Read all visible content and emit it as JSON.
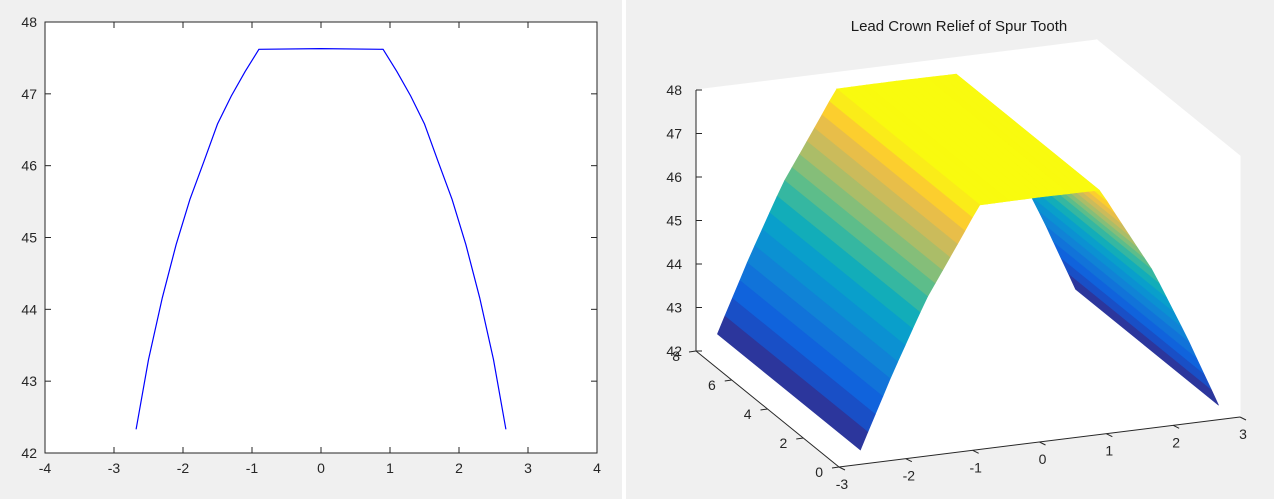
{
  "chart_data": [
    {
      "type": "line",
      "title": "",
      "xlabel": "",
      "ylabel": "",
      "xlim": [
        -4,
        4
      ],
      "ylim": [
        42,
        48
      ],
      "xticks": [
        "-4",
        "-3",
        "-2",
        "-1",
        "0",
        "1",
        "2",
        "3",
        "4"
      ],
      "yticks": [
        "42",
        "43",
        "44",
        "45",
        "46",
        "47",
        "48"
      ],
      "grid": false,
      "series": [
        {
          "color": "#0000ff",
          "x": [
            -2.68,
            -2.5,
            -2.3,
            -2.1,
            -1.9,
            -1.7,
            -1.5,
            -1.3,
            -1.1,
            -0.9,
            0.0,
            0.9,
            1.1,
            1.3,
            1.5,
            1.7,
            1.9,
            2.1,
            2.3,
            2.5,
            2.68
          ],
          "y": [
            42.33,
            43.3,
            44.16,
            44.9,
            45.53,
            46.05,
            46.58,
            46.97,
            47.31,
            47.62,
            47.63,
            47.62,
            47.31,
            46.97,
            46.58,
            46.05,
            45.53,
            44.9,
            44.16,
            43.3,
            42.33
          ]
        }
      ]
    },
    {
      "type": "surface",
      "title": "Lead Crown Relief of Spur Tooth",
      "xlabel": "",
      "ylabel": "",
      "zlabel": "",
      "xlim": [
        -3,
        3
      ],
      "ylim": [
        0,
        8
      ],
      "zlim": [
        42,
        48
      ],
      "xticks": [
        "-3",
        "-2",
        "-1",
        "0",
        "1",
        "2",
        "3"
      ],
      "yticks": [
        "0",
        "2",
        "4",
        "6",
        "8"
      ],
      "zticks": [
        "42",
        "43",
        "44",
        "45",
        "46",
        "47",
        "48"
      ],
      "grid": false,
      "colormap": "parula",
      "x": [
        -2.68,
        -2.2,
        -1.7,
        -1.3,
        -0.9,
        0.0,
        0.9,
        1.3,
        1.7,
        2.2,
        2.68
      ],
      "y_range": [
        0,
        8
      ],
      "z_profile": [
        42.33,
        44.0,
        45.6,
        46.6,
        47.62,
        47.63,
        47.62,
        46.6,
        45.6,
        44.0,
        42.33
      ]
    }
  ]
}
